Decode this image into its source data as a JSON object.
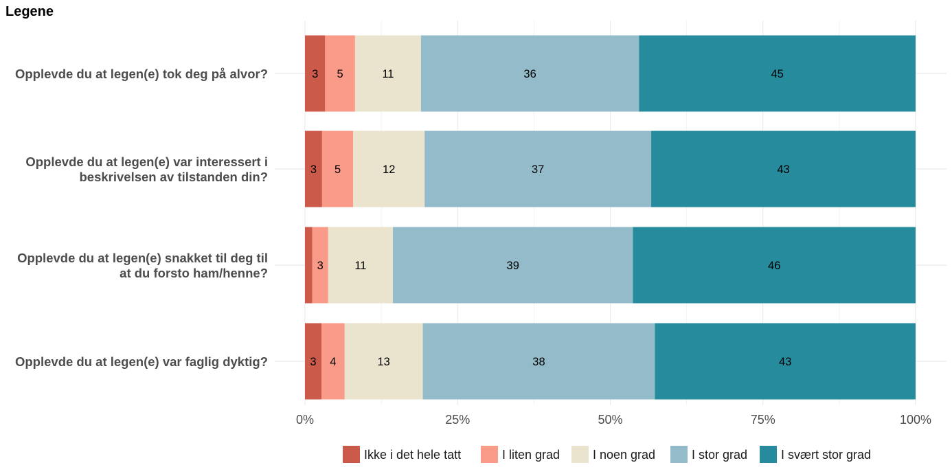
{
  "chart_data": {
    "type": "bar",
    "orientation": "horizontal",
    "stacked": true,
    "title": "Legene",
    "categories": [
      [
        "Opplevde du at legen(e) tok deg på alvor?"
      ],
      [
        "Opplevde du at legen(e) var interessert i",
        "beskrivelsen av tilstanden din?"
      ],
      [
        "Opplevde du at legen(e) snakket til deg til",
        "at du forsto ham/henne?"
      ],
      [
        "Opplevde du at legen(e) var faglig dyktig?"
      ]
    ],
    "series": [
      {
        "name": "Ikke i det hele tatt",
        "color": "#CB5A4A",
        "values": [
          3.3,
          2.8,
          1.2,
          2.7
        ],
        "labels": [
          "3",
          "3",
          "",
          "3"
        ]
      },
      {
        "name": "I liten grad",
        "color": "#F99B88",
        "values": [
          4.9,
          5.1,
          2.6,
          3.8
        ],
        "labels": [
          "5",
          "5",
          "3",
          "4"
        ]
      },
      {
        "name": "I noen grad",
        "color": "#EAE4CF",
        "values": [
          10.8,
          11.7,
          10.6,
          12.8
        ],
        "labels": [
          "11",
          "12",
          "11",
          "13"
        ]
      },
      {
        "name": "I stor grad",
        "color": "#93BBCA",
        "values": [
          35.7,
          37.1,
          39.3,
          38.0
        ],
        "labels": [
          "36",
          "37",
          "39",
          "38"
        ]
      },
      {
        "name": "I svært stor grad",
        "color": "#268B9D",
        "values": [
          45.3,
          43.3,
          46.3,
          42.7
        ],
        "labels": [
          "45",
          "43",
          "46",
          "43"
        ]
      }
    ],
    "xlim": [
      0,
      100
    ],
    "x_ticks": [
      0,
      25,
      50,
      75,
      100
    ],
    "x_tick_labels": [
      "0%",
      "25%",
      "50%",
      "75%",
      "100%"
    ],
    "grid": true,
    "legend_position": "bottom"
  }
}
